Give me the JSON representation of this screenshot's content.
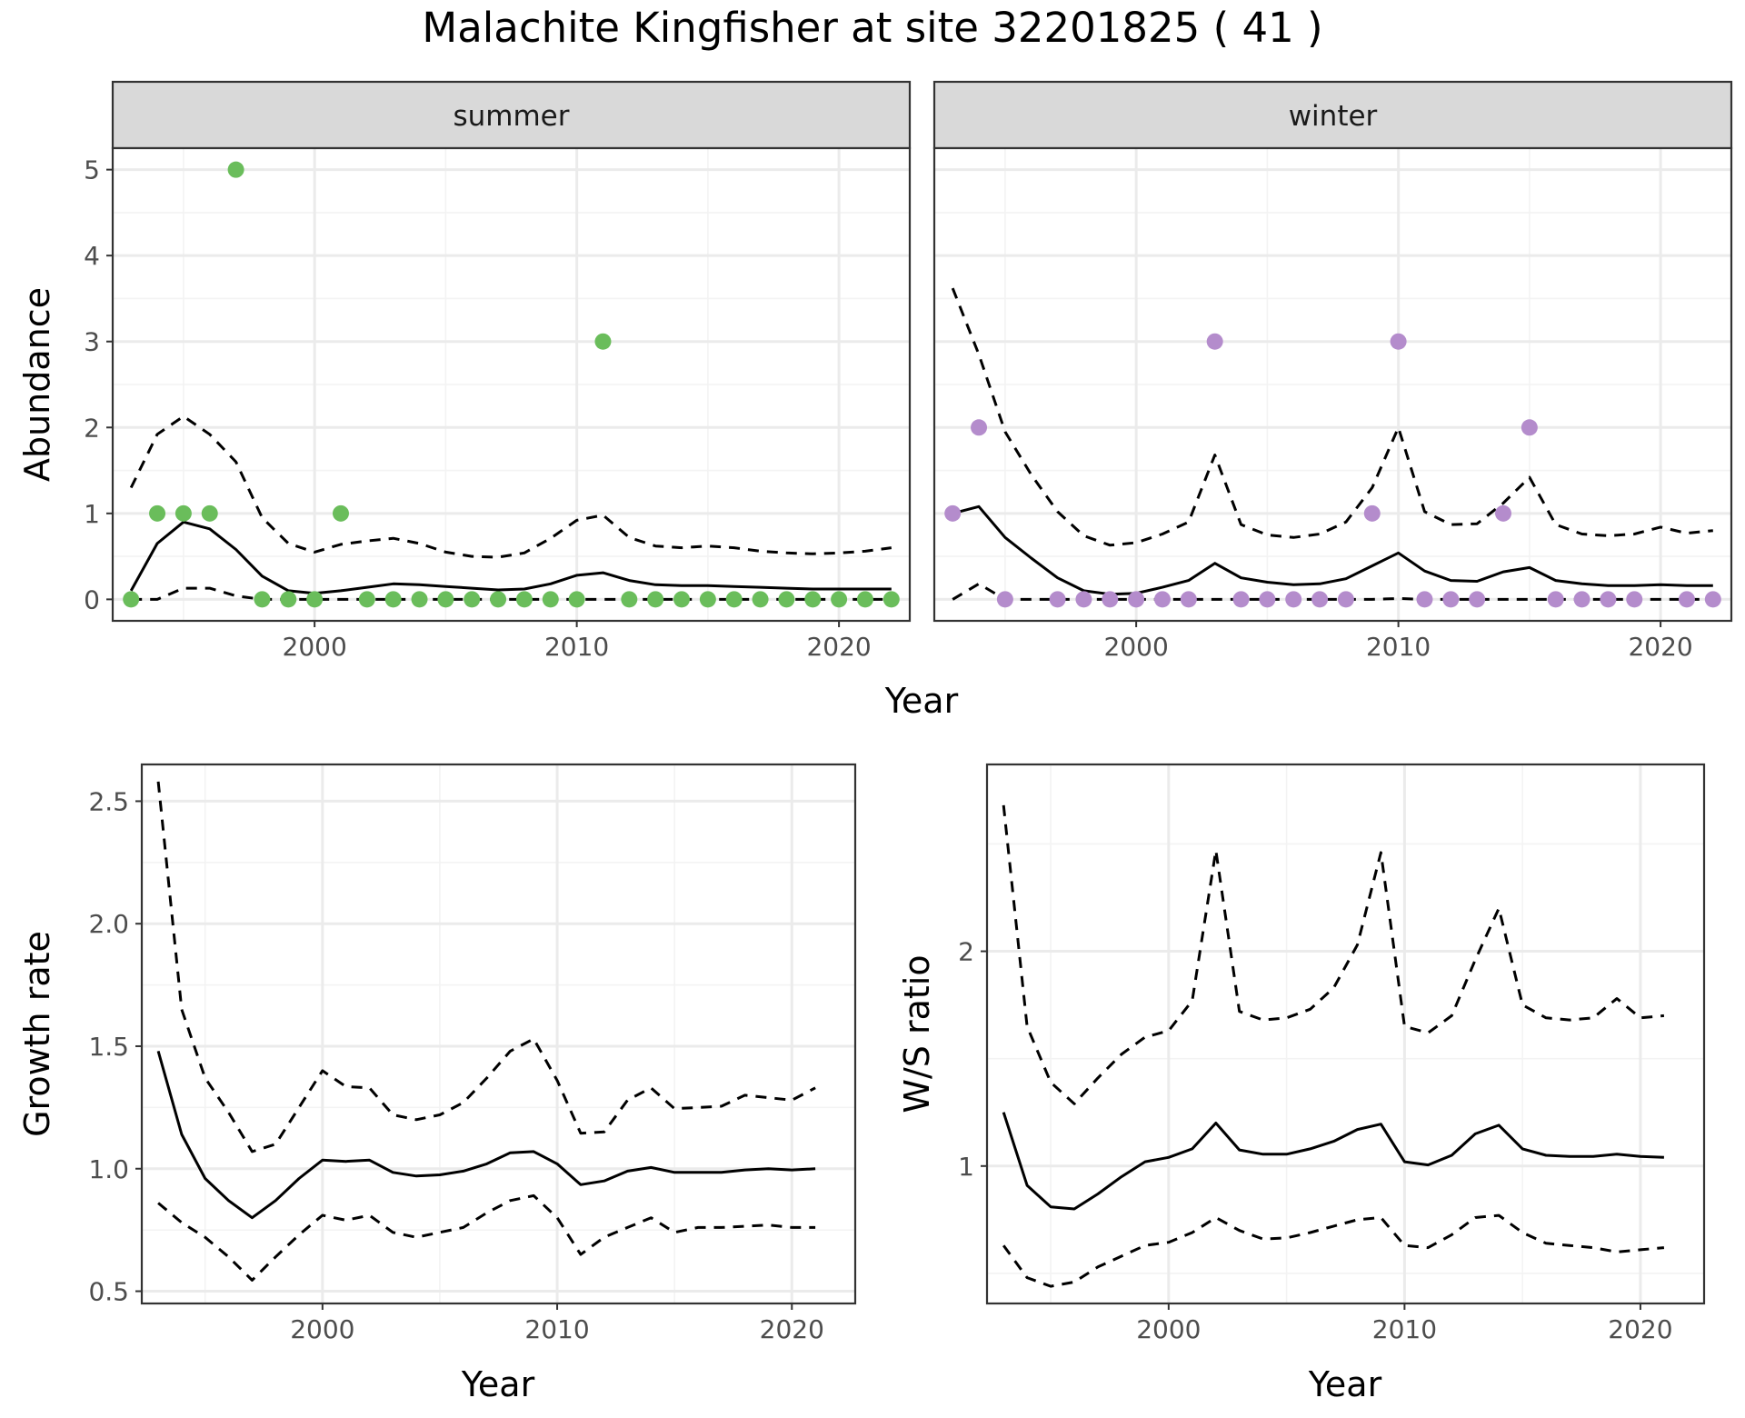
{
  "title": "Malachite Kingfisher at site 32201825 ( 41 )",
  "colors": {
    "summer_points": "#6abd5b",
    "winter_points": "#b48ccc",
    "line": "#000000",
    "strip_fill": "#d9d9d9",
    "grid_major": "#ebebeb",
    "grid_minor": "#f3f3f3"
  },
  "chart_data": [
    {
      "type": "scatter",
      "panel": "abundance",
      "facets": [
        "summer",
        "winter"
      ],
      "xlabel": "Year",
      "ylabel": "Abundance",
      "xlim": [
        1992.3,
        2022.7
      ],
      "ylim": [
        -0.25,
        5.25
      ],
      "x_ticks": [
        2000,
        2010,
        2020
      ],
      "y_ticks": [
        0,
        1,
        2,
        3,
        4,
        5
      ],
      "series": [
        {
          "facet": "summer",
          "x": [
            1993,
            1994,
            1995,
            1996,
            1997,
            1998,
            1999,
            2000,
            2001,
            2002,
            2003,
            2004,
            2005,
            2006,
            2007,
            2008,
            2009,
            2010,
            2011,
            2012,
            2013,
            2014,
            2015,
            2016,
            2017,
            2018,
            2019,
            2020,
            2021,
            2022
          ],
          "points": [
            0,
            1,
            1,
            1,
            5,
            0,
            0,
            0,
            1,
            0,
            0,
            0,
            0,
            0,
            0,
            0,
            0,
            0,
            3,
            0,
            0,
            0,
            0,
            0,
            0,
            0,
            0,
            0,
            0,
            0
          ],
          "mean": [
            0.1,
            0.65,
            0.9,
            0.82,
            0.58,
            0.27,
            0.1,
            0.07,
            0.1,
            0.14,
            0.18,
            0.17,
            0.15,
            0.13,
            0.11,
            0.12,
            0.18,
            0.28,
            0.31,
            0.22,
            0.17,
            0.16,
            0.16,
            0.15,
            0.14,
            0.13,
            0.12,
            0.12,
            0.12,
            0.12
          ],
          "upper": [
            1.3,
            1.92,
            2.13,
            1.92,
            1.6,
            0.95,
            0.65,
            0.55,
            0.64,
            0.68,
            0.71,
            0.65,
            0.55,
            0.5,
            0.49,
            0.54,
            0.71,
            0.92,
            0.98,
            0.72,
            0.62,
            0.6,
            0.62,
            0.6,
            0.56,
            0.54,
            0.53,
            0.54,
            0.56,
            0.6
          ],
          "lower": [
            0,
            0,
            0.13,
            0.13,
            0.04,
            0,
            0,
            0,
            0,
            0,
            0,
            0,
            0,
            0,
            0,
            0,
            0,
            0,
            0,
            0,
            0,
            0,
            0,
            0,
            0,
            0,
            0,
            0,
            0,
            0
          ]
        },
        {
          "facet": "winter",
          "x": [
            1993,
            1994,
            1995,
            1996,
            1997,
            1998,
            1999,
            2000,
            2001,
            2002,
            2003,
            2004,
            2005,
            2006,
            2007,
            2008,
            2009,
            2010,
            2011,
            2012,
            2013,
            2014,
            2015,
            2016,
            2017,
            2018,
            2019,
            2020,
            2021,
            2022
          ],
          "points": [
            1,
            2,
            0,
            null,
            0,
            0,
            0,
            0,
            0,
            0,
            3,
            0,
            0,
            0,
            0,
            0,
            1,
            3,
            0,
            0,
            0,
            1,
            2,
            0,
            0,
            0,
            0,
            null,
            0,
            0
          ],
          "mean": [
            1.0,
            1.08,
            0.72,
            0.48,
            0.25,
            0.1,
            0.06,
            0.07,
            0.14,
            0.22,
            0.42,
            0.25,
            0.2,
            0.17,
            0.18,
            0.24,
            0.39,
            0.54,
            0.33,
            0.22,
            0.21,
            0.32,
            0.37,
            0.22,
            0.18,
            0.16,
            0.16,
            0.17,
            0.16,
            0.16
          ],
          "upper": [
            3.62,
            2.85,
            1.95,
            1.45,
            1.02,
            0.74,
            0.63,
            0.66,
            0.76,
            0.9,
            1.68,
            0.87,
            0.75,
            0.72,
            0.76,
            0.9,
            1.3,
            2.0,
            1.02,
            0.87,
            0.88,
            1.12,
            1.42,
            0.87,
            0.76,
            0.74,
            0.76,
            0.84,
            0.77,
            0.8
          ],
          "lower": [
            0,
            0.18,
            0,
            0,
            0,
            0,
            0,
            0,
            0,
            0,
            0,
            0,
            0,
            0,
            0,
            0,
            0,
            0.01,
            0,
            0,
            0,
            0,
            0,
            0,
            0,
            0,
            0,
            0,
            0,
            0
          ]
        }
      ]
    },
    {
      "type": "line",
      "panel": "growth",
      "xlabel": "Year",
      "ylabel": "Growth rate",
      "xlim": [
        1992.3,
        2022.7
      ],
      "ylim": [
        0.45,
        2.65
      ],
      "x_ticks": [
        2000,
        2010,
        2020
      ],
      "y_ticks": [
        "0.5",
        "1.0",
        "1.5",
        "2.0",
        "2.5"
      ],
      "x": [
        1993,
        1994,
        1995,
        1996,
        1997,
        1998,
        1999,
        2000,
        2001,
        2002,
        2003,
        2004,
        2005,
        2006,
        2007,
        2008,
        2009,
        2010,
        2011,
        2012,
        2013,
        2014,
        2015,
        2016,
        2017,
        2018,
        2019,
        2020,
        2021
      ],
      "series": [
        {
          "role": "mean",
          "values": [
            1.48,
            1.14,
            0.96,
            0.87,
            0.8,
            0.87,
            0.96,
            1.035,
            1.03,
            1.035,
            0.985,
            0.97,
            0.975,
            0.99,
            1.02,
            1.065,
            1.07,
            1.02,
            0.935,
            0.95,
            0.99,
            1.005,
            0.985,
            0.985,
            0.985,
            0.995,
            1.0,
            0.995,
            1.0
          ]
        },
        {
          "role": "upper",
          "values": [
            2.58,
            1.65,
            1.37,
            1.23,
            1.07,
            1.1,
            1.25,
            1.4,
            1.335,
            1.33,
            1.22,
            1.2,
            1.22,
            1.27,
            1.37,
            1.48,
            1.53,
            1.36,
            1.145,
            1.15,
            1.28,
            1.33,
            1.245,
            1.25,
            1.255,
            1.3,
            1.29,
            1.28,
            1.33
          ]
        },
        {
          "role": "lower",
          "values": [
            0.86,
            0.78,
            0.72,
            0.64,
            0.545,
            0.64,
            0.73,
            0.81,
            0.79,
            0.81,
            0.74,
            0.72,
            0.74,
            0.76,
            0.82,
            0.87,
            0.89,
            0.8,
            0.65,
            0.72,
            0.76,
            0.8,
            0.74,
            0.76,
            0.76,
            0.765,
            0.77,
            0.76,
            0.76
          ]
        }
      ]
    },
    {
      "type": "line",
      "panel": "ws_ratio",
      "xlabel": "Year",
      "ylabel": "W/S ratio",
      "xlim": [
        1992.3,
        2022.7
      ],
      "ylim": [
        0.36,
        2.87
      ],
      "x_ticks": [
        2000,
        2010,
        2020
      ],
      "y_ticks": [
        1,
        2
      ],
      "x": [
        1993,
        1994,
        1995,
        1996,
        1997,
        1998,
        1999,
        2000,
        2001,
        2002,
        2003,
        2004,
        2005,
        2006,
        2007,
        2008,
        2009,
        2010,
        2011,
        2012,
        2013,
        2014,
        2015,
        2016,
        2017,
        2018,
        2019,
        2020,
        2021
      ],
      "series": [
        {
          "role": "mean",
          "values": [
            1.25,
            0.91,
            0.81,
            0.8,
            0.87,
            0.95,
            1.02,
            1.04,
            1.08,
            1.2,
            1.075,
            1.055,
            1.055,
            1.08,
            1.115,
            1.17,
            1.195,
            1.02,
            1.005,
            1.05,
            1.15,
            1.19,
            1.08,
            1.05,
            1.045,
            1.045,
            1.055,
            1.045,
            1.04
          ]
        },
        {
          "role": "upper",
          "values": [
            2.68,
            1.65,
            1.39,
            1.29,
            1.41,
            1.52,
            1.6,
            1.63,
            1.77,
            2.47,
            1.72,
            1.68,
            1.69,
            1.73,
            1.83,
            2.03,
            2.46,
            1.65,
            1.62,
            1.7,
            1.96,
            2.2,
            1.75,
            1.69,
            1.68,
            1.69,
            1.78,
            1.69,
            1.7
          ]
        },
        {
          "role": "lower",
          "values": [
            0.63,
            0.48,
            0.44,
            0.46,
            0.53,
            0.58,
            0.63,
            0.645,
            0.69,
            0.76,
            0.7,
            0.66,
            0.665,
            0.69,
            0.72,
            0.75,
            0.76,
            0.63,
            0.62,
            0.68,
            0.76,
            0.77,
            0.69,
            0.64,
            0.63,
            0.62,
            0.6,
            0.61,
            0.62
          ]
        }
      ]
    }
  ]
}
